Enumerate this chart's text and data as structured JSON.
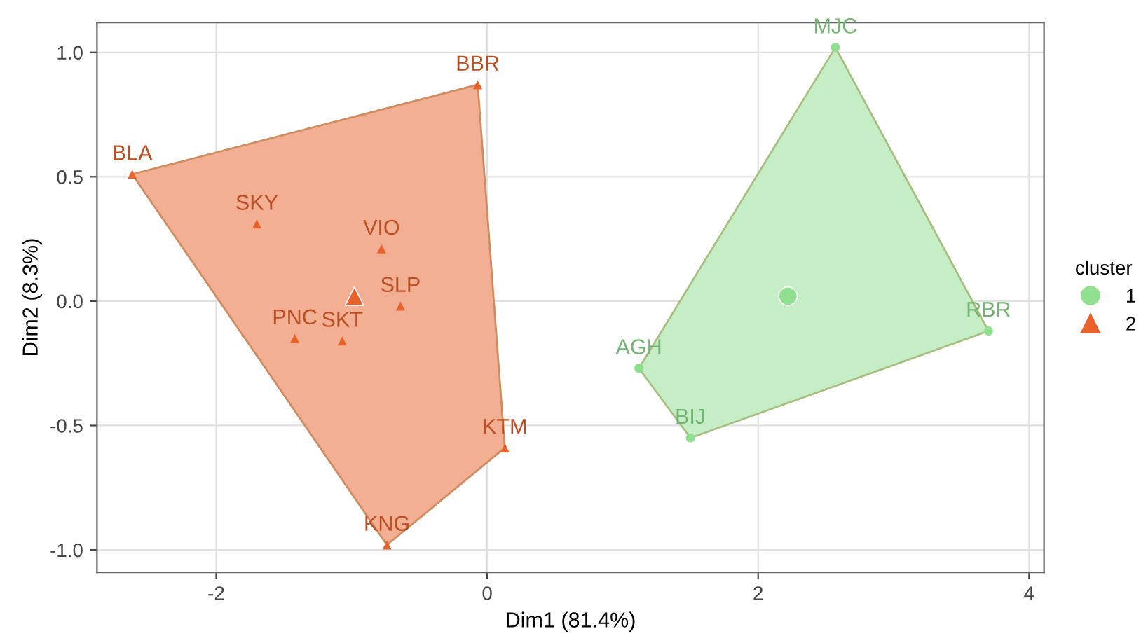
{
  "chart_data": {
    "type": "scatter",
    "xlabel": "Dim1 (81.4%)",
    "ylabel": "Dim2 (8.3%)",
    "legend_title": "cluster",
    "legend": "right",
    "grid": true,
    "xlim": [
      -2.88,
      4.11
    ],
    "ylim": [
      -1.09,
      1.12
    ],
    "xticks": [
      -2,
      0,
      2,
      4
    ],
    "yticks": [
      {
        "value": -1.0,
        "label": "-1.0"
      },
      {
        "value": -0.5,
        "label": "-0.5"
      },
      {
        "value": 0.0,
        "label": "0.0"
      },
      {
        "value": 0.5,
        "label": "0.5"
      },
      {
        "value": 1.0,
        "label": "1.0"
      }
    ],
    "series": [
      {
        "type": "area",
        "color": "#f2af93",
        "x": [
          -2.62,
          -0.07,
          0.13,
          -0.74,
          -2.62
        ],
        "values": [
          0.51,
          0.87,
          -0.59,
          -0.98,
          0.51
        ]
      },
      {
        "type": "area",
        "color": "#c6eec6",
        "x": [
          2.57,
          3.7,
          1.5,
          1.12,
          2.57
        ],
        "values": [
          1.02,
          -0.12,
          -0.55,
          -0.27,
          1.02
        ]
      },
      {
        "color": "#90e090",
        "marker": "circle",
        "x": [
          2.22
        ],
        "values": [
          0.02
        ]
      },
      {
        "color": "#e8632b",
        "marker": "triangle",
        "x": [
          -0.98
        ],
        "values": [
          0.02
        ]
      },
      {
        "name": "1",
        "color": "#90e090",
        "marker": "circle",
        "x": [
          2.57,
          3.7,
          1.12,
          1.5
        ],
        "values": [
          1.02,
          -0.12,
          -0.27,
          -0.55
        ]
      },
      {
        "name": "2",
        "color": "#e8632b",
        "marker": "triangle",
        "x": [
          -2.62,
          -0.07,
          -1.7,
          -0.78,
          -0.64,
          -1.42,
          -1.07,
          0.13,
          -0.74
        ],
        "values": [
          0.51,
          0.87,
          0.31,
          0.21,
          -0.02,
          -0.15,
          -0.16,
          -0.59,
          -0.98
        ]
      }
    ],
    "annotations": [
      {
        "text": "MJC",
        "x": 2.57,
        "y": 1.02
      },
      {
        "text": "RBR",
        "x": 3.7,
        "y": -0.12
      },
      {
        "text": "AGH",
        "x": 1.12,
        "y": -0.27
      },
      {
        "text": "BIJ",
        "x": 1.5,
        "y": -0.55
      },
      {
        "text": "BLA",
        "x": -2.62,
        "y": 0.51
      },
      {
        "text": "BBR",
        "x": -0.07,
        "y": 0.87
      },
      {
        "text": "SKY",
        "x": -1.7,
        "y": 0.31
      },
      {
        "text": "VIO",
        "x": -0.78,
        "y": 0.21
      },
      {
        "text": "SLP",
        "x": -0.64,
        "y": -0.02
      },
      {
        "text": "PNC",
        "x": -1.42,
        "y": -0.15
      },
      {
        "text": "SKT",
        "x": -1.07,
        "y": -0.16
      },
      {
        "text": "KTM",
        "x": 0.13,
        "y": -0.59
      },
      {
        "text": "KNG",
        "x": -0.74,
        "y": -0.98
      }
    ]
  }
}
